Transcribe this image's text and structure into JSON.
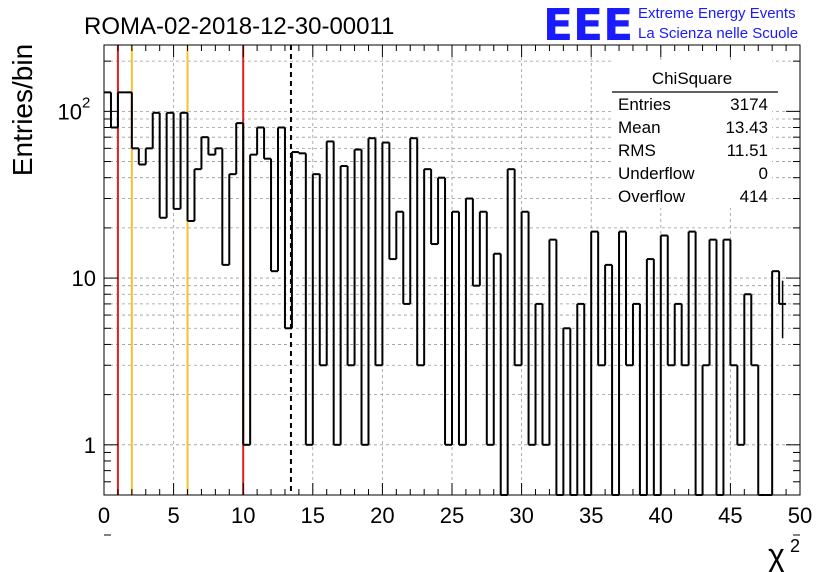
{
  "title": "ROMA-02-2018-12-30-00011",
  "logo": {
    "mark": "EEE",
    "line1": "Extreme Energy Events",
    "line2": "La Scienza nelle Scuole",
    "color": "#1a1aff"
  },
  "stats": {
    "name": "ChiSquare",
    "rows": [
      {
        "label": "Entries",
        "value": "3174"
      },
      {
        "label": "Mean",
        "value": "13.43"
      },
      {
        "label": "RMS",
        "value": "11.51"
      },
      {
        "label": "Underflow",
        "value": "0"
      },
      {
        "label": "Overflow",
        "value": "414"
      }
    ]
  },
  "chart_data": {
    "type": "histogram",
    "xlabel": "χ",
    "xlabel_sup": "2",
    "ylabel": "Entries/bin",
    "xlim": [
      0,
      50
    ],
    "ylim": [
      0.5,
      250
    ],
    "yscale": "log",
    "grid": true,
    "bin_width": 0.5,
    "x_ticks": [
      "0",
      "5",
      "10",
      "15",
      "20",
      "25",
      "30",
      "35",
      "40",
      "45",
      "50"
    ],
    "y_ticks": [
      {
        "value": 1,
        "label": "1"
      },
      {
        "value": 10,
        "label": "10"
      },
      {
        "value": 100,
        "label": "10",
        "sup": "2"
      }
    ],
    "bins": [
      [
        0.0,
        130
      ],
      [
        0.5,
        80
      ],
      [
        1.0,
        130
      ],
      [
        1.5,
        130
      ],
      [
        2.0,
        60
      ],
      [
        2.5,
        48
      ],
      [
        3.0,
        60
      ],
      [
        3.5,
        98
      ],
      [
        4.0,
        23
      ],
      [
        4.5,
        98
      ],
      [
        5.0,
        26
      ],
      [
        5.5,
        98
      ],
      [
        6.0,
        22
      ],
      [
        6.5,
        45
      ],
      [
        7.0,
        70
      ],
      [
        7.5,
        55
      ],
      [
        8.0,
        60
      ],
      [
        8.5,
        12
      ],
      [
        9.0,
        42
      ],
      [
        9.5,
        85
      ],
      [
        10.0,
        1
      ],
      [
        10.5,
        55
      ],
      [
        11.0,
        80
      ],
      [
        11.5,
        52
      ],
      [
        12.0,
        11
      ],
      [
        12.5,
        80
      ],
      [
        13.0,
        5
      ],
      [
        13.5,
        57
      ],
      [
        14.0,
        56
      ],
      [
        14.5,
        1
      ],
      [
        15.0,
        42
      ],
      [
        15.5,
        3
      ],
      [
        16.0,
        66
      ],
      [
        16.5,
        1
      ],
      [
        17.0,
        47
      ],
      [
        17.5,
        3
      ],
      [
        18.0,
        59
      ],
      [
        18.5,
        1
      ],
      [
        19.0,
        69
      ],
      [
        19.5,
        3
      ],
      [
        20.0,
        65
      ],
      [
        20.5,
        13
      ],
      [
        21.0,
        25
      ],
      [
        21.5,
        7
      ],
      [
        22.0,
        69
      ],
      [
        22.5,
        3
      ],
      [
        23.0,
        45
      ],
      [
        23.5,
        16
      ],
      [
        24.0,
        40
      ],
      [
        24.5,
        1
      ],
      [
        25.0,
        25
      ],
      [
        25.5,
        1
      ],
      [
        26.0,
        30
      ],
      [
        26.5,
        9
      ],
      [
        27.0,
        25
      ],
      [
        27.5,
        1
      ],
      [
        28.0,
        14
      ],
      [
        28.5,
        0
      ],
      [
        29.0,
        45
      ],
      [
        29.5,
        3
      ],
      [
        30.0,
        25
      ],
      [
        30.5,
        1
      ],
      [
        31.0,
        7
      ],
      [
        31.5,
        1
      ],
      [
        32.0,
        17
      ],
      [
        32.5,
        0
      ],
      [
        33.0,
        5
      ],
      [
        33.5,
        0
      ],
      [
        34.0,
        7
      ],
      [
        34.5,
        0
      ],
      [
        35.0,
        19
      ],
      [
        35.5,
        3
      ],
      [
        36.0,
        12
      ],
      [
        36.5,
        0
      ],
      [
        37.0,
        19
      ],
      [
        37.5,
        3
      ],
      [
        38.0,
        7
      ],
      [
        38.5,
        0
      ],
      [
        39.0,
        13
      ],
      [
        39.5,
        0
      ],
      [
        40.0,
        18
      ],
      [
        40.5,
        3
      ],
      [
        41.0,
        7
      ],
      [
        41.5,
        3
      ],
      [
        42.0,
        19
      ],
      [
        42.5,
        0
      ],
      [
        43.0,
        3
      ],
      [
        43.5,
        17
      ],
      [
        44.0,
        0
      ],
      [
        44.5,
        17
      ],
      [
        45.0,
        3
      ],
      [
        45.5,
        1
      ],
      [
        46.0,
        8
      ],
      [
        46.5,
        3
      ],
      [
        47.0,
        0
      ],
      [
        47.5,
        0
      ],
      [
        48.0,
        11
      ],
      [
        48.5,
        7
      ]
    ],
    "vlines": [
      {
        "x": 1,
        "color": "#e02020",
        "style": "solid"
      },
      {
        "x": 2,
        "color": "#f2c230",
        "style": "solid"
      },
      {
        "x": 6,
        "color": "#f2c230",
        "style": "solid"
      },
      {
        "x": 10,
        "color": "#e02020",
        "style": "solid"
      },
      {
        "x": 13.43,
        "color": "#000000",
        "style": "dashed"
      }
    ]
  }
}
